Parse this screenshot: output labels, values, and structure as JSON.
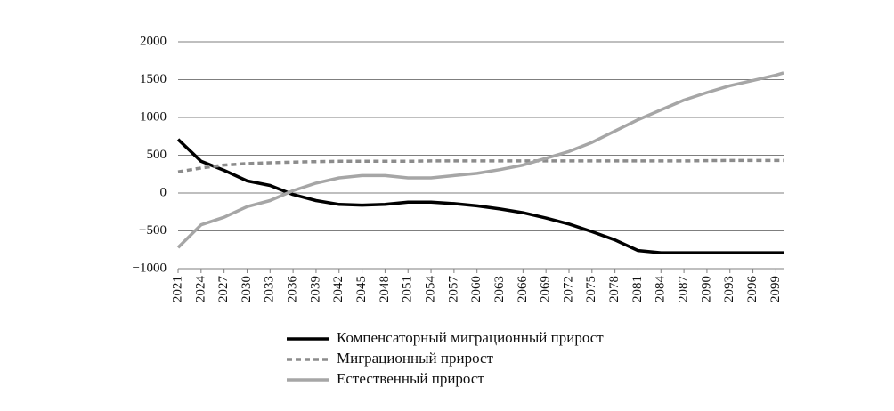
{
  "chart_data": {
    "type": "line",
    "x": [
      2021,
      2024,
      2027,
      2030,
      2033,
      2036,
      2039,
      2042,
      2045,
      2048,
      2051,
      2054,
      2057,
      2060,
      2063,
      2066,
      2069,
      2072,
      2075,
      2078,
      2081,
      2084,
      2087,
      2090,
      2093,
      2096,
      2099,
      2100
    ],
    "series": [
      {
        "name": "Компенсаторный миграционный прирост",
        "color": "#000000",
        "values": [
          710,
          420,
          300,
          160,
          100,
          -20,
          -100,
          -150,
          -160,
          -150,
          -120,
          -120,
          -140,
          -170,
          -210,
          -260,
          -330,
          -410,
          -510,
          -620,
          -760,
          -790,
          -790,
          -790,
          -790,
          -790,
          -790,
          -790
        ]
      },
      {
        "name": "Миграционный прирост",
        "color": "#8c8c8c",
        "dashed": true,
        "values": [
          280,
          330,
          370,
          390,
          400,
          410,
          415,
          420,
          420,
          420,
          420,
          425,
          425,
          425,
          425,
          425,
          425,
          425,
          425,
          425,
          425,
          425,
          425,
          428,
          430,
          430,
          430,
          430
        ]
      },
      {
        "name": "Естественный прирост",
        "color": "#a6a6a6",
        "values": [
          -720,
          -420,
          -320,
          -180,
          -100,
          30,
          130,
          200,
          230,
          230,
          200,
          200,
          230,
          260,
          310,
          370,
          460,
          550,
          670,
          820,
          970,
          1100,
          1230,
          1330,
          1420,
          1490,
          1560,
          1590
        ]
      }
    ],
    "xlim": [
      2021,
      2100
    ],
    "xticks": [
      2021,
      2024,
      2027,
      2030,
      2033,
      2036,
      2039,
      2042,
      2045,
      2048,
      2051,
      2054,
      2057,
      2060,
      2063,
      2066,
      2069,
      2072,
      2075,
      2078,
      2081,
      2084,
      2087,
      2090,
      2093,
      2096,
      2099
    ],
    "ylim": [
      -1000,
      2000
    ],
    "yticks": [
      {
        "value": -1000,
        "label": "−1000"
      },
      {
        "value": -500,
        "label": "−500"
      },
      0,
      500,
      1000,
      1500,
      2000
    ],
    "grid": true
  }
}
